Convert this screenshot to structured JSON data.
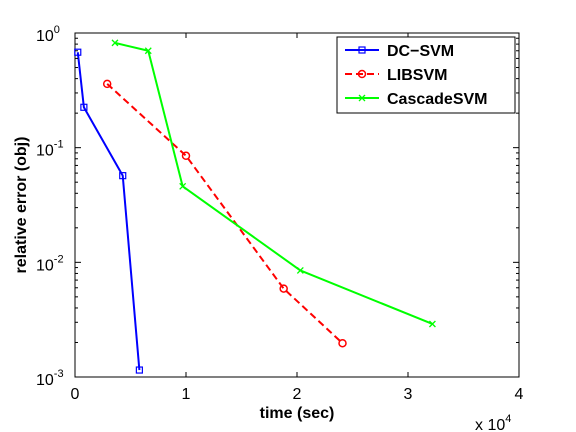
{
  "chart_data": {
    "type": "line",
    "title": "",
    "xlabel": "time (sec)",
    "ylabel": "relative error (obj)",
    "x_multiplier": "x 10",
    "x_multiplier_exp": "4",
    "x_scale": "linear",
    "y_scale": "log",
    "xlim": [
      0,
      40000
    ],
    "ylim": [
      0.001,
      1
    ],
    "x_ticks": [
      {
        "value": 0,
        "label": "0"
      },
      {
        "value": 10000,
        "label": "1"
      },
      {
        "value": 20000,
        "label": "2"
      },
      {
        "value": 30000,
        "label": "3"
      },
      {
        "value": 40000,
        "label": "4"
      }
    ],
    "y_ticks": [
      {
        "value": 1,
        "base": "10",
        "exp": "0"
      },
      {
        "value": 0.1,
        "base": "10",
        "exp": "-1"
      },
      {
        "value": 0.01,
        "base": "10",
        "exp": "-2"
      },
      {
        "value": 0.001,
        "base": "10",
        "exp": "-3"
      }
    ],
    "grid": false,
    "legend_position": "top-right",
    "series": [
      {
        "name": "DC−SVM",
        "color": "#0000ff",
        "dash": "solid",
        "marker": "square",
        "x": [
          250,
          800,
          4300,
          5800
        ],
        "y": [
          0.68,
          0.225,
          0.057,
          0.00115
        ]
      },
      {
        "name": "LIBSVM",
        "color": "#ff0000",
        "dash": "dashed",
        "marker": "circle",
        "x": [
          2900,
          10000,
          18800,
          24100
        ],
        "y": [
          0.36,
          0.085,
          0.0059,
          0.00197
        ]
      },
      {
        "name": "CascadeSVM",
        "color": "#00ff00",
        "dash": "solid",
        "marker": "x",
        "x": [
          3600,
          6600,
          9700,
          20300,
          32200
        ],
        "y": [
          0.82,
          0.7,
          0.046,
          0.0085,
          0.0029
        ]
      }
    ]
  }
}
